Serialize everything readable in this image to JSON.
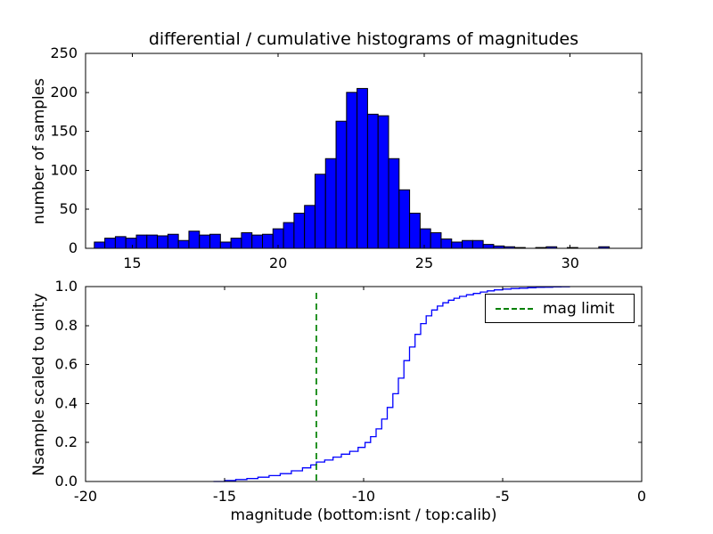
{
  "figure": {
    "background": "#ffffff"
  },
  "chart_data": [
    {
      "type": "bar",
      "title": "differential / cumulative histograms of magnitudes",
      "ylabel": "number of samples",
      "xlabel": "",
      "xlim": [
        13.4,
        32.45
      ],
      "ylim": [
        0,
        250
      ],
      "xticks": [
        15,
        20,
        25,
        30
      ],
      "yticks": [
        0,
        50,
        100,
        150,
        200,
        250
      ],
      "grid": false,
      "bar_color": "#0000ff",
      "bar_edge_color": "#000000",
      "bin_start": 13.7,
      "bin_width": 0.36,
      "counts": [
        8,
        13,
        15,
        13,
        17,
        17,
        16,
        18,
        10,
        22,
        17,
        18,
        8,
        13,
        20,
        17,
        18,
        25,
        33,
        45,
        55,
        95,
        115,
        163,
        200,
        205,
        172,
        170,
        115,
        75,
        45,
        25,
        20,
        12,
        8,
        10,
        10,
        5,
        3,
        2,
        1,
        0,
        1,
        2,
        0,
        1,
        0,
        0,
        2,
        0
      ]
    },
    {
      "type": "line",
      "step": true,
      "title": "",
      "xlabel": "magnitude (bottom:isnt / top:calib)",
      "ylabel": "Nsample scaled to unity",
      "xlim": [
        -20,
        0
      ],
      "ylim": [
        0,
        1
      ],
      "xticks": [
        -20,
        -15,
        -10,
        -5,
        0
      ],
      "ytick_values": [
        0,
        0.2,
        0.4,
        0.6,
        0.8,
        1.0
      ],
      "ytick_labels": [
        "0.0",
        "0.2",
        "0.4",
        "0.6",
        "0.8",
        "1.0"
      ],
      "grid": false,
      "line_color": "#0000ff",
      "points": [
        [
          -15.4,
          0
        ],
        [
          -15.0,
          0.005
        ],
        [
          -14.6,
          0.01
        ],
        [
          -14.2,
          0.015
        ],
        [
          -13.8,
          0.022
        ],
        [
          -13.4,
          0.03
        ],
        [
          -13.0,
          0.04
        ],
        [
          -12.6,
          0.055
        ],
        [
          -12.2,
          0.07
        ],
        [
          -11.9,
          0.085
        ],
        [
          -11.7,
          0.1
        ],
        [
          -11.4,
          0.11
        ],
        [
          -11.1,
          0.125
        ],
        [
          -10.8,
          0.14
        ],
        [
          -10.5,
          0.155
        ],
        [
          -10.2,
          0.175
        ],
        [
          -9.95,
          0.2
        ],
        [
          -9.75,
          0.23
        ],
        [
          -9.55,
          0.27
        ],
        [
          -9.35,
          0.32
        ],
        [
          -9.15,
          0.38
        ],
        [
          -8.95,
          0.45
        ],
        [
          -8.75,
          0.53
        ],
        [
          -8.55,
          0.62
        ],
        [
          -8.35,
          0.69
        ],
        [
          -8.15,
          0.755
        ],
        [
          -7.95,
          0.81
        ],
        [
          -7.75,
          0.85
        ],
        [
          -7.55,
          0.88
        ],
        [
          -7.35,
          0.9
        ],
        [
          -7.15,
          0.917
        ],
        [
          -6.95,
          0.93
        ],
        [
          -6.75,
          0.94
        ],
        [
          -6.55,
          0.95
        ],
        [
          -6.3,
          0.958
        ],
        [
          -6.05,
          0.965
        ],
        [
          -5.8,
          0.972
        ],
        [
          -5.55,
          0.978
        ],
        [
          -5.3,
          0.983
        ],
        [
          -5.0,
          0.987
        ],
        [
          -4.7,
          0.99
        ],
        [
          -4.4,
          0.992
        ],
        [
          -4.1,
          0.994
        ],
        [
          -3.8,
          0.996
        ],
        [
          -3.5,
          0.997
        ],
        [
          -3.2,
          0.998
        ],
        [
          -2.9,
          0.999
        ],
        [
          -2.6,
          1.0
        ]
      ],
      "mag_limit_line": {
        "x": -11.7,
        "color": "#008000",
        "style": "dashed",
        "label": "mag limit"
      },
      "legend": {
        "position": "upper right",
        "entries": [
          "mag limit"
        ]
      }
    }
  ]
}
